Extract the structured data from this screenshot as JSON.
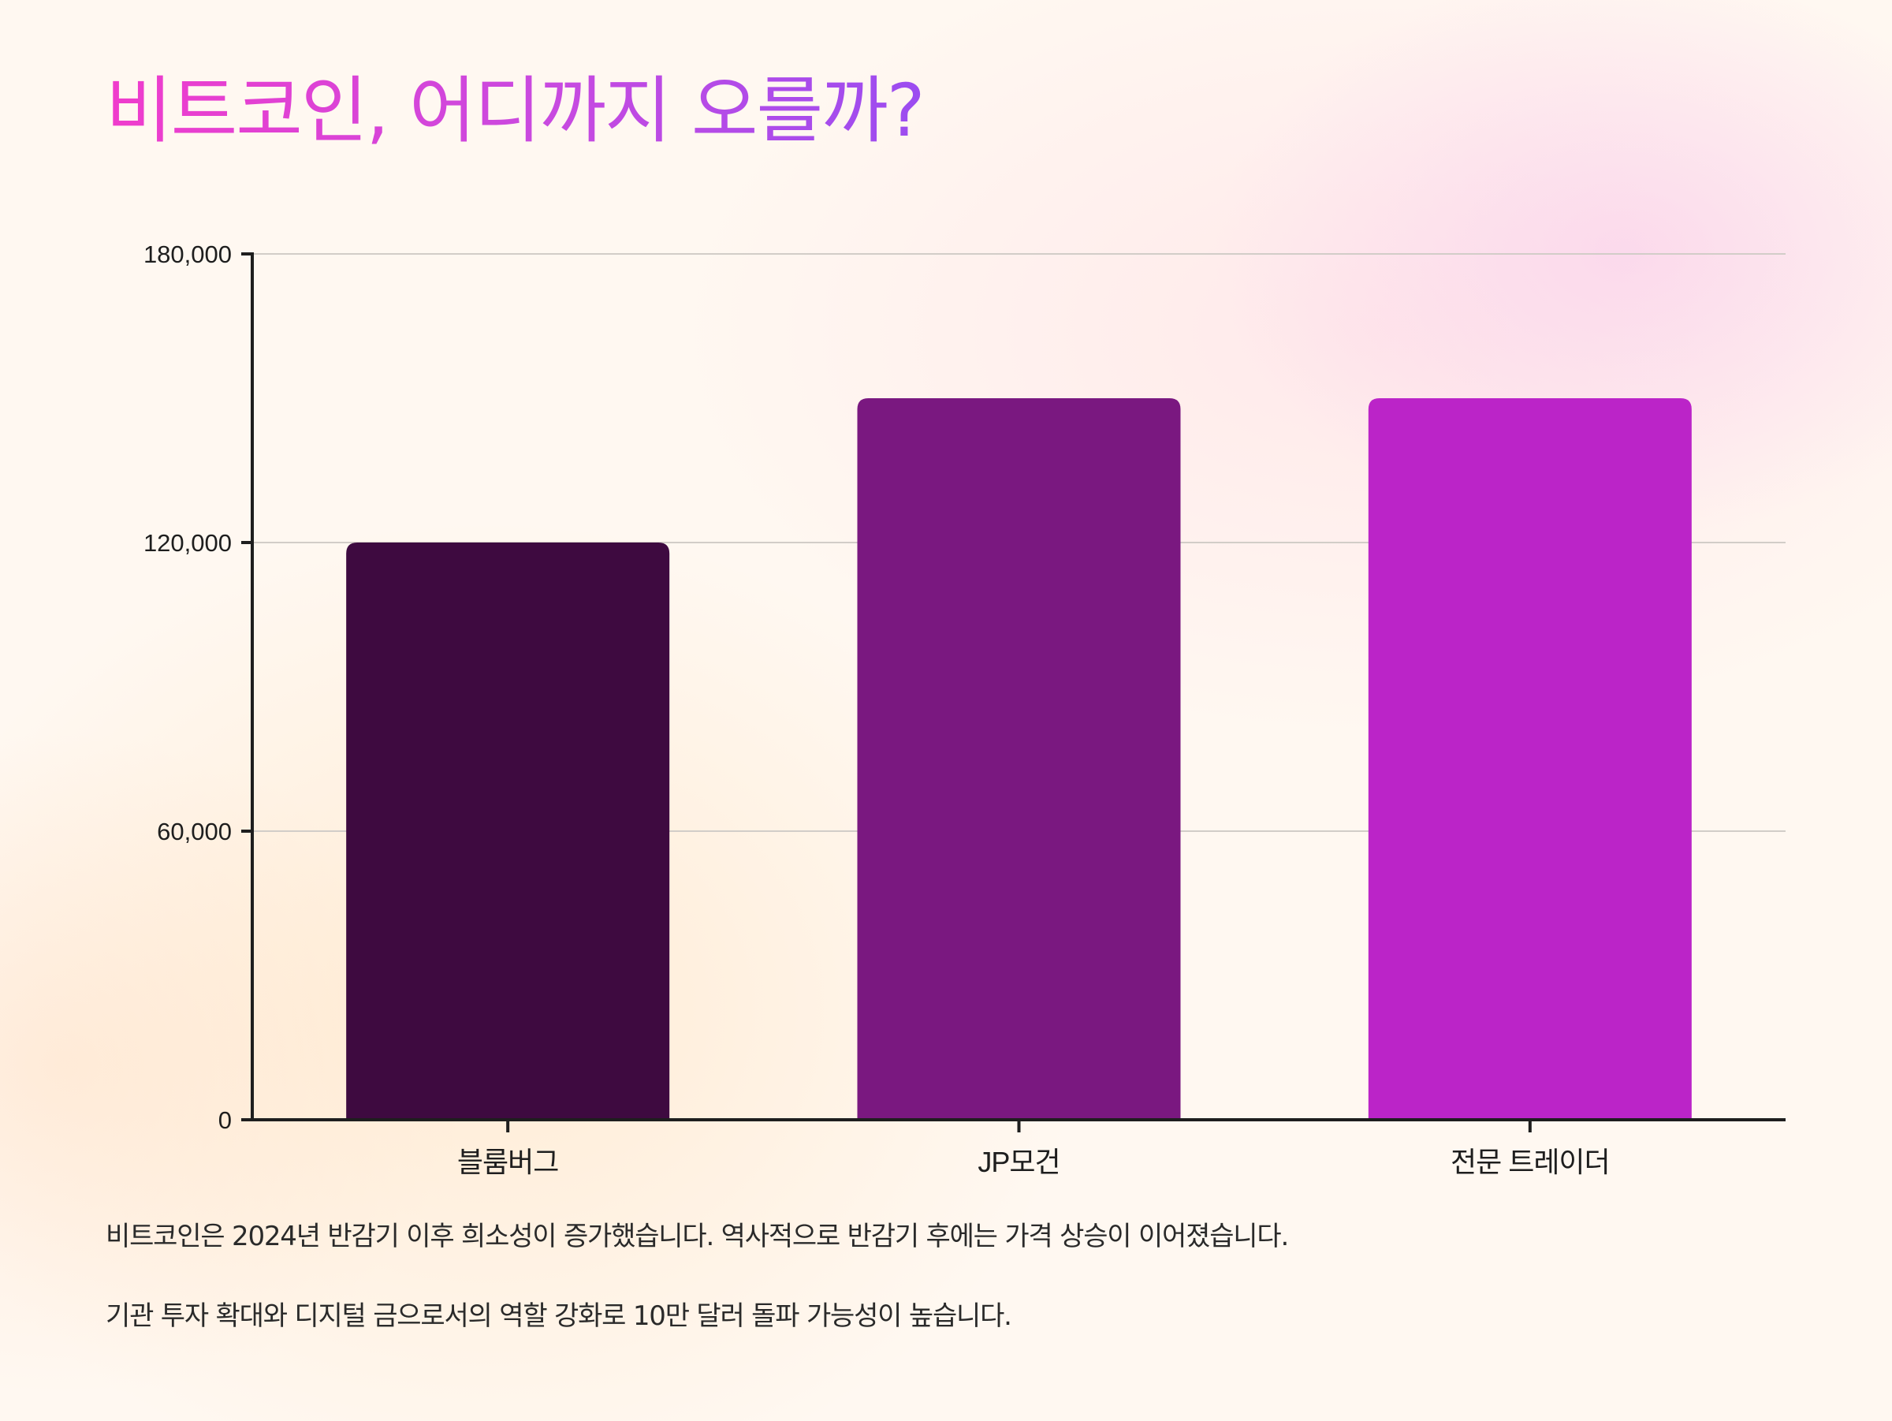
{
  "page": {
    "title": "비트코인, 어디까지 오를까?",
    "notes": [
      "비트코인은 2024년 반감기 이후 희소성이 증가했습니다. 역사적으로 반감기 후에는 가격 상승이 이어졌습니다.",
      "기관 투자 확대와 디지털 금으로서의 역할 강화로 10만 달러 돌파 가능성이 높습니다."
    ]
  },
  "chart_data": {
    "type": "bar",
    "title": "",
    "xlabel": "",
    "ylabel": "",
    "categories": [
      "블룸버그",
      "JP모건",
      "전문 트레이더"
    ],
    "values": [
      120000,
      150000,
      150000
    ],
    "colors": [
      "#3e0a40",
      "#7a1880",
      "#bb24c8"
    ],
    "ylim": [
      0,
      180000
    ],
    "yticks": [
      0,
      60000,
      120000,
      180000
    ],
    "ytick_labels": [
      "0",
      "60,000",
      "120,000",
      "180,000"
    ],
    "grid": true,
    "legend": "none"
  }
}
